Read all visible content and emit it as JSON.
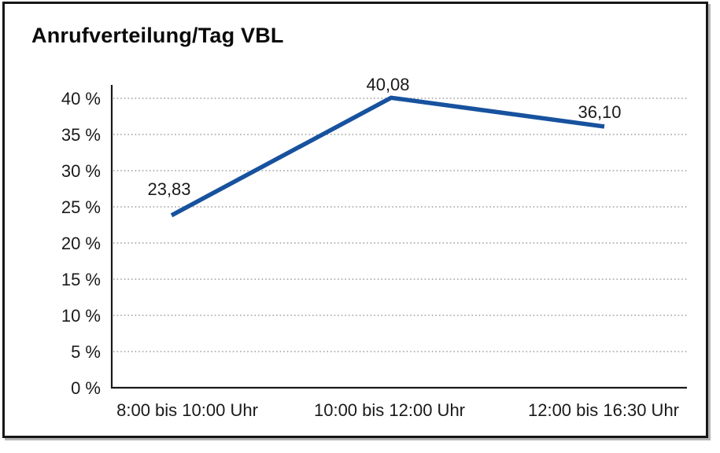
{
  "frame": {
    "background": "#ffffff",
    "border_color": "#161616",
    "shadow_color": "#b3b3b3"
  },
  "chart_data": {
    "type": "line",
    "title": "Anrufverteilung/Tag VBL",
    "categories": [
      "8:00 bis 10:00 Uhr",
      "10:00 bis 12:00 Uhr",
      "12:00 bis 16:30 Uhr"
    ],
    "values": [
      23.83,
      40.08,
      36.1
    ],
    "data_labels": [
      "23,83",
      "40,08",
      "36,10"
    ],
    "ytick_values": [
      0,
      5,
      10,
      15,
      20,
      25,
      30,
      35,
      40
    ],
    "ytick_labels": [
      "0 %",
      "5 %",
      "10 %",
      "15 %",
      "20 %",
      "25 %",
      "30 %",
      "35 %",
      "40 %"
    ],
    "ylim": [
      0,
      40
    ],
    "xlabel": "",
    "ylabel": "",
    "grid": "horizontal-dotted",
    "legend": "none",
    "markers": "none",
    "line_color": "#17529E",
    "axis_color": "#1a1a1a",
    "grid_color": "#8c8c8c",
    "text_color": "#1a1a1a"
  }
}
